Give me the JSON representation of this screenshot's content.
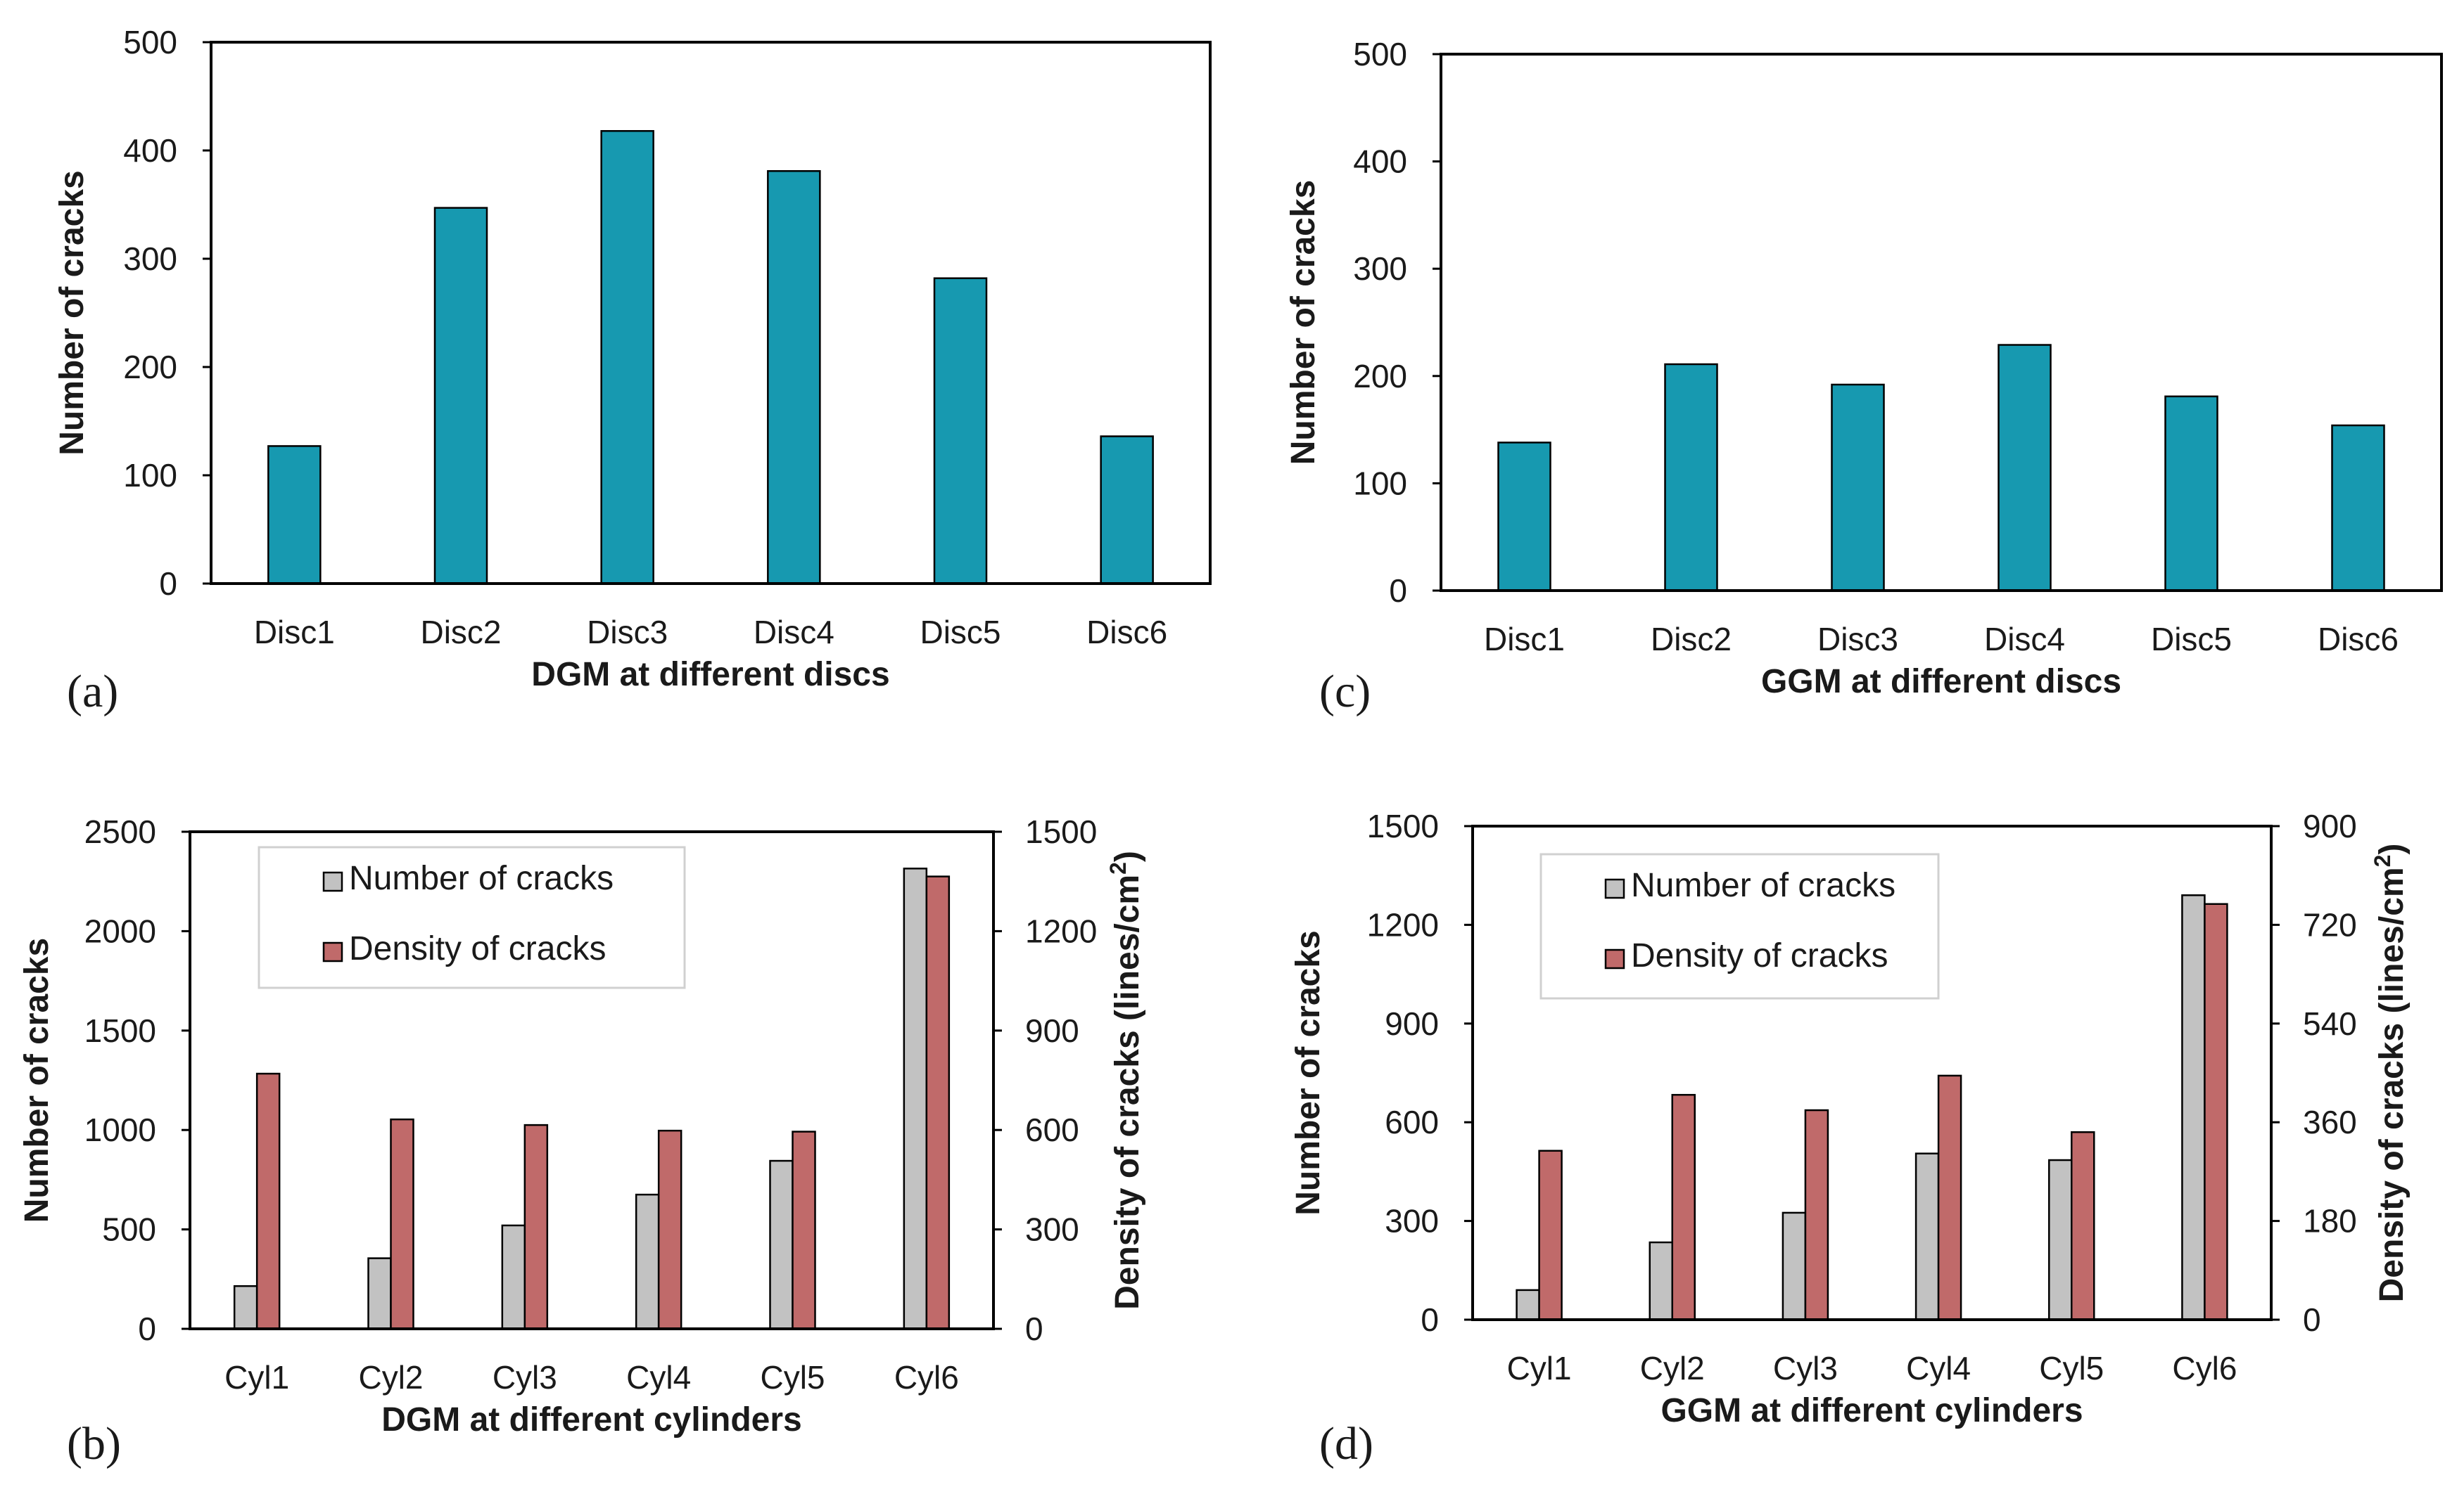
{
  "colors": {
    "teal": "#1799b0",
    "gray": "#c2c2c2",
    "red": "#c06a6a",
    "stroke": "#000000"
  },
  "chart_data": [
    {
      "id": "a",
      "panel_label": "(a)",
      "type": "bar",
      "title": "",
      "xlabel": "DGM at different discs",
      "ylabel": "Number of cracks",
      "ylim": [
        0,
        500
      ],
      "yticks": [
        0,
        100,
        200,
        300,
        400,
        500
      ],
      "grid": false,
      "categories": [
        "Disc1",
        "Disc2",
        "Disc3",
        "Disc4",
        "Disc5",
        "Disc6"
      ],
      "series": [
        {
          "name": "Number of cracks",
          "axis": "left",
          "color_key": "teal",
          "values": [
            127,
            347,
            418,
            381,
            282,
            136
          ]
        }
      ]
    },
    {
      "id": "c",
      "panel_label": "(c)",
      "type": "bar",
      "title": "",
      "xlabel": "GGM at different discs",
      "ylabel": "Number of cracks",
      "ylim": [
        0,
        500
      ],
      "yticks": [
        0,
        100,
        200,
        300,
        400,
        500
      ],
      "grid": false,
      "categories": [
        "Disc1",
        "Disc2",
        "Disc3",
        "Disc4",
        "Disc5",
        "Disc6"
      ],
      "series": [
        {
          "name": "Number of cracks",
          "axis": "left",
          "color_key": "teal",
          "values": [
            138,
            211,
            192,
            229,
            181,
            154
          ]
        }
      ]
    },
    {
      "id": "b",
      "panel_label": "(b)",
      "type": "bar",
      "title": "",
      "xlabel": "DGM at different cylinders",
      "ylabel": "Number of cracks",
      "y2label_main": "Density of cracks (lines/cm",
      "y2label_sup": "2",
      "y2label_end": ")",
      "ylim": [
        0,
        2500
      ],
      "yticks": [
        0,
        500,
        1000,
        1500,
        2000,
        2500
      ],
      "y2lim": [
        0,
        1500
      ],
      "y2ticks": [
        0,
        300,
        600,
        900,
        1200,
        1500
      ],
      "grid": false,
      "legend_position": "top-left",
      "categories": [
        "Cyl1",
        "Cyl2",
        "Cyl3",
        "Cyl4",
        "Cyl5",
        "Cyl6"
      ],
      "series": [
        {
          "name": "Number of cracks",
          "axis": "left",
          "color_key": "gray",
          "values": [
            215,
            355,
            520,
            675,
            845,
            2315
          ]
        },
        {
          "name": "Density of cracks",
          "axis": "right",
          "color_key": "red",
          "values": [
            770,
            632,
            615,
            598,
            595,
            1365
          ]
        }
      ]
    },
    {
      "id": "d",
      "panel_label": "(d)",
      "type": "bar",
      "title": "",
      "xlabel": "GGM at different cylinders",
      "ylabel": "Number of cracks",
      "y2label_main": "Density of cracks (lines/cm",
      "y2label_sup": "2",
      "y2label_end": ")",
      "ylim": [
        0,
        1500
      ],
      "yticks": [
        0,
        300,
        600,
        900,
        1200,
        1500
      ],
      "y2lim": [
        0,
        900
      ],
      "y2ticks": [
        0,
        180,
        360,
        540,
        720,
        900
      ],
      "grid": false,
      "legend_position": "top-left",
      "categories": [
        "Cyl1",
        "Cyl2",
        "Cyl3",
        "Cyl4",
        "Cyl5",
        "Cyl6"
      ],
      "series": [
        {
          "name": "Number of cracks",
          "axis": "left",
          "color_key": "gray",
          "values": [
            90,
            235,
            325,
            505,
            485,
            1290
          ]
        },
        {
          "name": "Density of cracks",
          "axis": "right",
          "color_key": "red",
          "values": [
            308,
            410,
            382,
            445,
            342,
            758
          ]
        }
      ]
    }
  ]
}
